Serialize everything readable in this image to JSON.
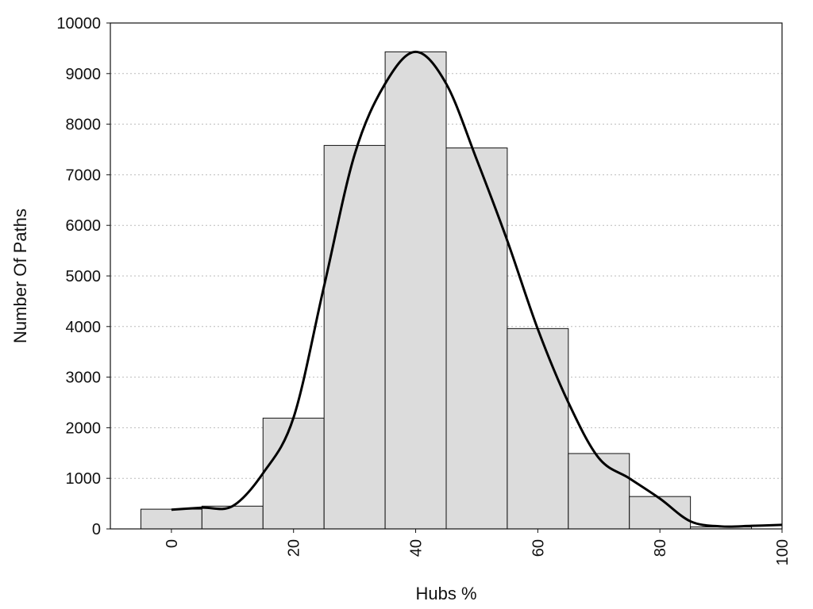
{
  "chart_data": {
    "type": "bar",
    "title": "",
    "xlabel": "Hubs %",
    "ylabel": "Number Of Paths",
    "xlim": [
      -10,
      100
    ],
    "ylim": [
      0,
      10000
    ],
    "x_ticks": [
      0,
      20,
      40,
      60,
      80,
      100
    ],
    "y_ticks": [
      0,
      1000,
      2000,
      3000,
      4000,
      5000,
      6000,
      7000,
      8000,
      9000,
      10000
    ],
    "bin_width": 10,
    "bins": [
      {
        "x": 0,
        "value": 390
      },
      {
        "x": 10,
        "value": 450
      },
      {
        "x": 20,
        "value": 2190
      },
      {
        "x": 30,
        "value": 7580
      },
      {
        "x": 40,
        "value": 9430
      },
      {
        "x": 50,
        "value": 7530
      },
      {
        "x": 60,
        "value": 3960
      },
      {
        "x": 70,
        "value": 1490
      },
      {
        "x": 80,
        "value": 640
      },
      {
        "x": 90,
        "value": 40
      }
    ],
    "curve": {
      "x": [
        0,
        5,
        10,
        15,
        20,
        25,
        30,
        35,
        40,
        45,
        50,
        55,
        60,
        65,
        70,
        75,
        80,
        85,
        90,
        95,
        100
      ],
      "y": [
        380,
        420,
        450,
        1100,
        2200,
        4800,
        7400,
        8800,
        9430,
        8800,
        7300,
        5700,
        3950,
        2500,
        1400,
        1000,
        600,
        150,
        50,
        60,
        80
      ]
    },
    "grid": {
      "y": true,
      "x": false
    },
    "colors": {
      "bar_fill": "#dcdcdc",
      "bar_stroke": "#111111",
      "curve": "#000000",
      "grid": "#bbbbbb"
    }
  }
}
